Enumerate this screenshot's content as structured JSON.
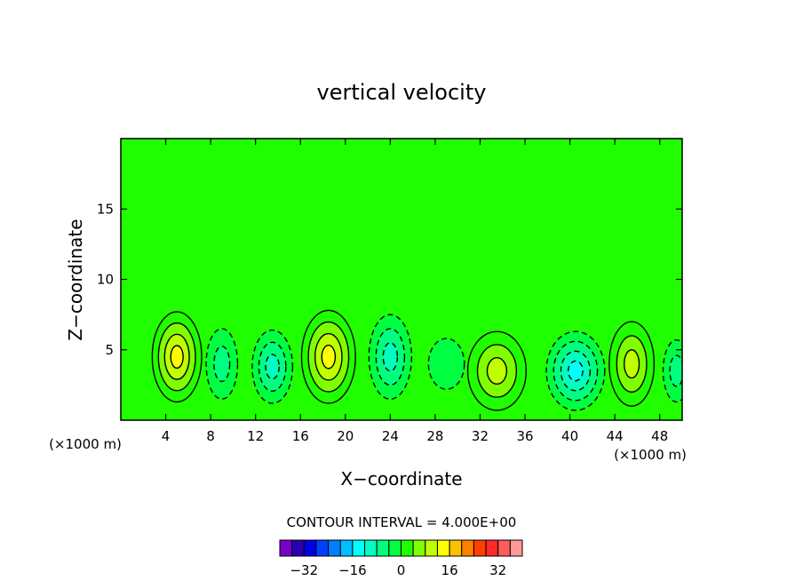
{
  "chart_data": {
    "type": "heatmap",
    "title": "vertical velocity",
    "xlabel": "X−coordinate",
    "ylabel": "Z−coordinate",
    "x_unit_left": "(×1000 m)",
    "x_unit_right": "(×1000 m)",
    "xlim": [
      0,
      50
    ],
    "ylim": [
      0,
      20
    ],
    "x_ticks": [
      4,
      8,
      12,
      16,
      20,
      24,
      28,
      32,
      36,
      40,
      44,
      48
    ],
    "y_ticks": [
      5,
      10,
      15
    ],
    "contour_interval_label": "CONTOUR INTERVAL = 4.000E+00",
    "contour_interval": 4,
    "colorbar_ticks": [
      "−32",
      "−16",
      "0",
      "16",
      "32"
    ],
    "colorbar_tick_values": [
      -32,
      -16,
      0,
      16,
      32
    ],
    "colorbar_colors": [
      "#7a00c8",
      "#2a00b4",
      "#0000e6",
      "#0040ff",
      "#007fff",
      "#00bfff",
      "#00ffff",
      "#00ffc0",
      "#00ff7f",
      "#00ff40",
      "#20ff00",
      "#7fff00",
      "#bfff00",
      "#ffff00",
      "#ffc000",
      "#ff8000",
      "#ff4000",
      "#ff2a2a",
      "#ff5c5c",
      "#ff9999"
    ],
    "colorbar_min": -40,
    "colorbar_max": 40,
    "background_color": "#20ff00",
    "cells": [
      {
        "xc": 5,
        "zc": 4.5,
        "rx": 2.2,
        "rz": 3.2,
        "v": 14
      },
      {
        "xc": 9,
        "zc": 4.0,
        "rx": 1.4,
        "rz": 2.5,
        "v": -6
      },
      {
        "xc": 13.5,
        "zc": 3.8,
        "rx": 1.8,
        "rz": 2.6,
        "v": -10
      },
      {
        "xc": 18.5,
        "zc": 4.5,
        "rx": 2.4,
        "rz": 3.3,
        "v": 16
      },
      {
        "xc": 24,
        "zc": 4.5,
        "rx": 1.9,
        "rz": 3.0,
        "v": -10
      },
      {
        "xc": 29,
        "zc": 4.0,
        "rx": 1.6,
        "rz": 1.8,
        "v": -3
      },
      {
        "xc": 33.5,
        "zc": 3.5,
        "rx": 2.6,
        "rz": 2.8,
        "v": 10
      },
      {
        "xc": 40.5,
        "zc": 3.5,
        "rx": 2.6,
        "rz": 2.8,
        "v": -14
      },
      {
        "xc": 45.5,
        "zc": 4.0,
        "rx": 2.0,
        "rz": 3.0,
        "v": 12
      },
      {
        "xc": 49.5,
        "zc": 3.5,
        "rx": 1.2,
        "rz": 2.2,
        "v": -6
      }
    ]
  }
}
